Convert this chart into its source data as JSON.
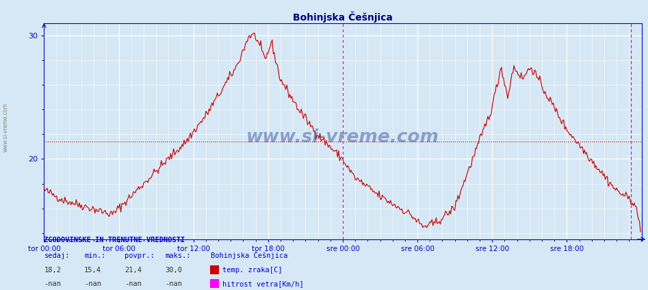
{
  "title": "Bohinjska Češnjica",
  "title_color": "#000080",
  "bg_color": "#d6e8f5",
  "line_color": "#cc0000",
  "avg_line_value": 21.4,
  "magenta_color": "#cc00cc",
  "grid_color": "#ffffff",
  "axis_color": "#0000bb",
  "ylim": [
    13.5,
    31.0
  ],
  "ytick_vals": [
    20,
    30
  ],
  "n_points": 576,
  "vertical_line1": 288,
  "vertical_line2": 566,
  "watermark": "www.si-vreme.com",
  "watermark_color": "#1a3a8c",
  "left_label": "www.si-vreme.com",
  "footer_header": "ZGODOVINSKE IN TRENUTNE VREDNOSTI",
  "footer_color": "#0000cc",
  "col_headers": [
    "sedaj:",
    "min.:",
    "povpr.:",
    "maks.:"
  ],
  "legend_title": "Bohinjska Češnjica",
  "row1_vals": [
    "18,2",
    "15,4",
    "21,4",
    "30,0"
  ],
  "row1_label": "temp. zraka[C]",
  "row1_color": "#cc0000",
  "row2_vals": [
    "-nan",
    "-nan",
    "-nan",
    "-nan"
  ],
  "row2_label": "hitrost vetra[Km/h]",
  "row2_color": "#ff00ff",
  "xtick_positions": [
    0,
    72,
    144,
    216,
    288,
    360,
    432,
    504
  ],
  "xtick_labels": [
    "tor 00:00",
    "tor 06:00",
    "tor 12:00",
    "tor 18:00",
    "sre 00:00",
    "sre 06:00",
    "sre 12:00",
    "sre 18:00"
  ]
}
